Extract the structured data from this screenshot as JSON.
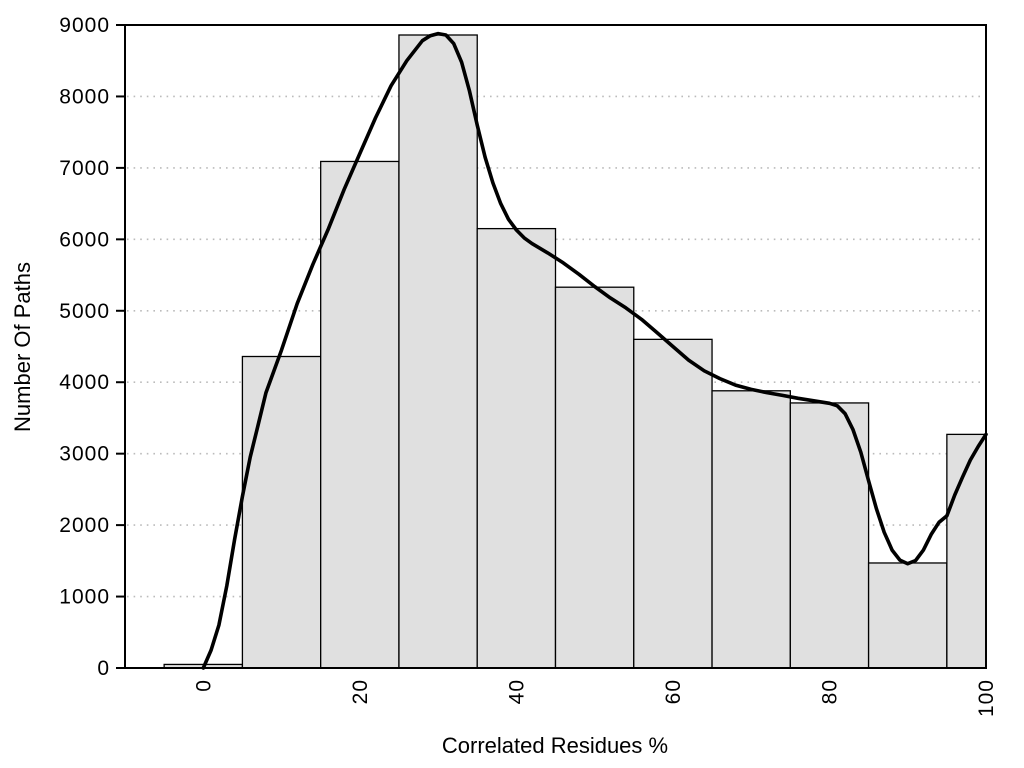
{
  "chart_data": {
    "type": "bar",
    "subtype": "histogram_with_density_curve",
    "title": "",
    "xlabel": "Correlated Residues %",
    "ylabel": "Number Of Paths",
    "xlim": [
      -10,
      100
    ],
    "ylim": [
      0,
      9000
    ],
    "x_ticks": [
      0,
      20,
      40,
      60,
      80,
      100
    ],
    "y_ticks": [
      0,
      1000,
      2000,
      3000,
      4000,
      5000,
      6000,
      7000,
      8000,
      9000
    ],
    "grid": "horizontal dotted at every 1000, hidden behind bars",
    "legend_position": "none",
    "x_tick_label_rotation_deg": -90,
    "bars": {
      "bin_edges": [
        -5,
        5,
        15,
        25,
        35,
        45,
        55,
        65,
        75,
        85,
        95,
        100
      ],
      "counts": [
        50,
        4360,
        7090,
        8860,
        6150,
        5330,
        4600,
        3880,
        3710,
        1470,
        3270
      ],
      "fill": "#e0e0e0",
      "stroke": "#000000"
    },
    "density_curve": {
      "color": "#000000",
      "points": [
        [
          0,
          0
        ],
        [
          1,
          250
        ],
        [
          2,
          600
        ],
        [
          3,
          1150
        ],
        [
          4,
          1800
        ],
        [
          5,
          2400
        ],
        [
          6,
          2950
        ],
        [
          7,
          3400
        ],
        [
          8,
          3850
        ],
        [
          9,
          4150
        ],
        [
          10,
          4450
        ],
        [
          12,
          5100
        ],
        [
          14,
          5650
        ],
        [
          16,
          6150
        ],
        [
          18,
          6700
        ],
        [
          20,
          7200
        ],
        [
          22,
          7700
        ],
        [
          24,
          8150
        ],
        [
          26,
          8500
        ],
        [
          28,
          8780
        ],
        [
          29,
          8850
        ],
        [
          30,
          8880
        ],
        [
          31,
          8860
        ],
        [
          32,
          8740
        ],
        [
          33,
          8480
        ],
        [
          34,
          8080
        ],
        [
          35,
          7600
        ],
        [
          36,
          7150
        ],
        [
          37,
          6790
        ],
        [
          38,
          6500
        ],
        [
          39,
          6280
        ],
        [
          40,
          6130
        ],
        [
          41,
          6020
        ],
        [
          42,
          5940
        ],
        [
          44,
          5810
        ],
        [
          46,
          5670
        ],
        [
          48,
          5510
        ],
        [
          50,
          5340
        ],
        [
          52,
          5180
        ],
        [
          54,
          5040
        ],
        [
          56,
          4880
        ],
        [
          58,
          4690
        ],
        [
          60,
          4500
        ],
        [
          62,
          4310
        ],
        [
          64,
          4160
        ],
        [
          66,
          4050
        ],
        [
          68,
          3960
        ],
        [
          70,
          3900
        ],
        [
          72,
          3855
        ],
        [
          74,
          3815
        ],
        [
          76,
          3775
        ],
        [
          78,
          3740
        ],
        [
          80,
          3705
        ],
        [
          81,
          3670
        ],
        [
          82,
          3560
        ],
        [
          83,
          3340
        ],
        [
          84,
          3020
        ],
        [
          85,
          2620
        ],
        [
          86,
          2230
        ],
        [
          87,
          1900
        ],
        [
          88,
          1650
        ],
        [
          89,
          1510
        ],
        [
          90,
          1460
        ],
        [
          91,
          1505
        ],
        [
          92,
          1650
        ],
        [
          93,
          1870
        ],
        [
          94,
          2040
        ],
        [
          95,
          2130
        ],
        [
          96,
          2420
        ],
        [
          97,
          2670
        ],
        [
          98,
          2910
        ],
        [
          99,
          3100
        ],
        [
          100,
          3270
        ]
      ]
    },
    "colors": {
      "background": "#ffffff",
      "frame": "#000000",
      "grid": "#bbbbbb",
      "tick": "#000000",
      "text": "#000000"
    }
  }
}
